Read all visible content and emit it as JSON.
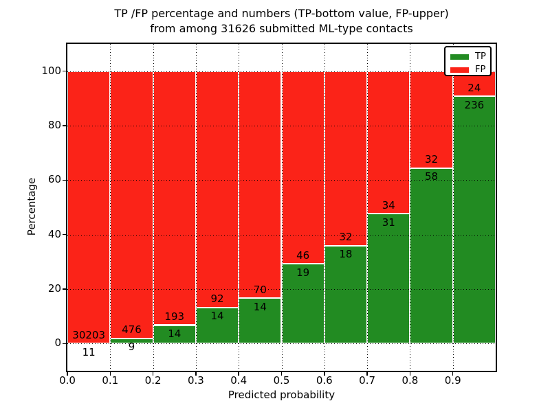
{
  "figure": {
    "title_line1": "TP /FP percentage and numbers (TP-bottom value, FP-upper)",
    "title_line2": "from among 31626 submitted ML-type contacts"
  },
  "chart_data": {
    "type": "bar",
    "stacked": true,
    "title": "TP /FP percentage and numbers (TP-bottom value, FP-upper) from among 31626 submitted ML-type contacts",
    "xlabel": "Predicted probability",
    "ylabel": "Percentage",
    "xlim": [
      0,
      1
    ],
    "ylim": [
      -10,
      110
    ],
    "grid": true,
    "legend_position": "upper right",
    "total_contacts": 31626,
    "bin_width": 0.1,
    "bin_starts": [
      0.0,
      0.1,
      0.2,
      0.3,
      0.4,
      0.5,
      0.6,
      0.7,
      0.8,
      0.9
    ],
    "xtick_labels": [
      "0.0",
      "0.1",
      "0.2",
      "0.3",
      "0.4",
      "0.5",
      "0.6",
      "0.7",
      "0.8",
      "0.9"
    ],
    "yticks": [
      0,
      20,
      40,
      60,
      80,
      100
    ],
    "series": [
      {
        "name": "TP",
        "color": "#228b22",
        "counts": [
          11,
          9,
          14,
          14,
          14,
          19,
          18,
          31,
          58,
          236
        ]
      },
      {
        "name": "FP",
        "color": "#fb2318",
        "counts": [
          30203,
          476,
          193,
          92,
          70,
          46,
          32,
          34,
          32,
          24
        ]
      }
    ],
    "tp_percent_of_bin": [
      0.04,
      1.86,
      6.76,
      13.21,
      16.67,
      29.23,
      36.0,
      47.69,
      64.44,
      90.77
    ],
    "stack_total_percent": 100
  }
}
